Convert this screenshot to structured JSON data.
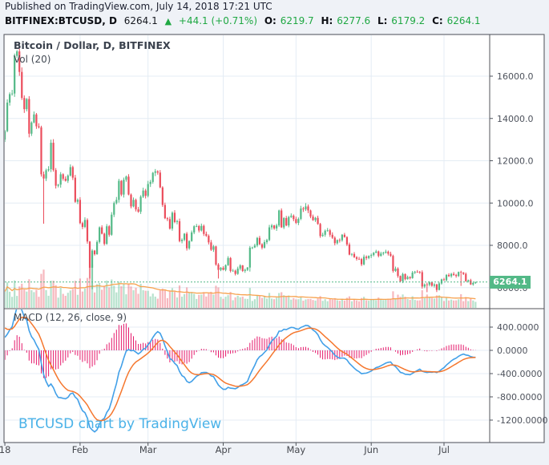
{
  "published_bar": {
    "text": "Published on TradingView.com, July 14, 2018 17:21 UTC"
  },
  "symbol_bar": {
    "symbol": "BITFINEX:BTCUSD, D",
    "last_price": "6264.1",
    "direction_icon": "▲",
    "change": "+44.1 (+0.71%)",
    "ohlc": [
      {
        "label": "O:",
        "value": "6219.7"
      },
      {
        "label": "H:",
        "value": "6277.6"
      },
      {
        "label": "L:",
        "value": "6179.2"
      },
      {
        "label": "C:",
        "value": "6264.1"
      }
    ]
  },
  "legend": {
    "main": "Bitcoin / Dollar, D, BITFINEX",
    "volume": "Vol (20)",
    "macd": "MACD (12, 26, close, 9)"
  },
  "watermark": "BTCUSD chart by TradingView",
  "colors": {
    "up": "#53b987",
    "down": "#eb4d5c",
    "vol_up": "rgba(83,185,135,0.42)",
    "vol_down": "rgba(235,77,92,0.40)",
    "vol_ma": "#f7a24e",
    "macd_line": "#42a0e8",
    "macd_signal": "#f5772e",
    "macd_hist": "#e5196b",
    "text_green": "#1fa843",
    "price_line": "#53b987",
    "price_tag_bg": "#53b987",
    "watermark": "#4ab2e8",
    "grid": "#e4ecf4",
    "frame": "#50535a",
    "axis_text": "#4d525c",
    "plot_bg": "#ffffff",
    "page_bg": "#eff2f7"
  },
  "chart_data": {
    "type": "candlestick",
    "title": "Bitcoin / Dollar, D, BITFINEX",
    "panes": [
      "price+volume",
      "macd"
    ],
    "x_axis": {
      "labels": [
        {
          "label": "18",
          "day": 0
        },
        {
          "label": "Feb",
          "day": 31
        },
        {
          "label": "Mar",
          "day": 59
        },
        {
          "label": "Apr",
          "day": 90
        },
        {
          "label": "May",
          "day": 120
        },
        {
          "label": "Jun",
          "day": 151
        },
        {
          "label": "Jul",
          "day": 181
        }
      ],
      "month_day_cumulative": [
        31,
        59,
        90,
        120,
        151,
        181,
        195
      ]
    },
    "price_axis": {
      "ticks": [
        {
          "v": 16000,
          "label": "16000.0"
        },
        {
          "v": 14000,
          "label": "14000.0"
        },
        {
          "v": 12000,
          "label": "12000.0"
        },
        {
          "v": 10000,
          "label": "10000.0"
        },
        {
          "v": 8000,
          "label": "8000.0"
        },
        {
          "v": 6000,
          "label": "6000.0"
        }
      ],
      "last_price": 6264.1,
      "last_price_label": "6264.1"
    },
    "macd_axis": {
      "ticks": [
        {
          "v": 400,
          "label": "400.0000"
        },
        {
          "v": 0,
          "label": "0.0000"
        },
        {
          "v": -400,
          "label": "-400.0000"
        },
        {
          "v": -800,
          "label": "-800.0000"
        },
        {
          "v": -1200,
          "label": "-1200.0000"
        }
      ]
    },
    "open_first": 13000,
    "closes": [
      13400,
      14750,
      15150,
      15180,
      16960,
      17170,
      16200,
      14970,
      14440,
      14920,
      13280,
      13810,
      14190,
      13630,
      13580,
      11360,
      11160,
      11550,
      11600,
      12850,
      11560,
      10820,
      10870,
      11360,
      11150,
      11050,
      11300,
      11700,
      11200,
      10060,
      10150,
      9050,
      8870,
      9200,
      8180,
      6940,
      7750,
      7580,
      8160,
      8850,
      8550,
      8070,
      8900,
      8500,
      9450,
      10000,
      10150,
      11050,
      10400,
      11100,
      11250,
      10400,
      9840,
      10150,
      9700,
      9590,
      10300,
      10590,
      10340,
      10900,
      11000,
      11430,
      11500,
      11440,
      10740,
      9910,
      9280,
      9240,
      8790,
      9540,
      9100,
      9140,
      8200,
      8260,
      8550,
      7860,
      8200,
      8610,
      8900,
      8910,
      8700,
      8920,
      8540,
      8450,
      8140,
      7790,
      7950,
      7090,
      6840,
      6940,
      6840,
      7060,
      7400,
      6790,
      6800,
      6650,
      6900,
      7050,
      6790,
      6840,
      6950,
      7890,
      7900,
      7990,
      8350,
      8050,
      7890,
      8150,
      8250,
      8850,
      8940,
      8800,
      8940,
      9650,
      8850,
      9290,
      8940,
      9340,
      9400,
      9240,
      9060,
      9250,
      9740,
      9700,
      9840,
      9650,
      9360,
      9190,
      9300,
      9010,
      8440,
      8500,
      8690,
      8710,
      8500,
      8360,
      8100,
      8250,
      8240,
      8500,
      8390,
      8040,
      7560,
      7590,
      7440,
      7360,
      7350,
      7100,
      7460,
      7400,
      7500,
      7540,
      7650,
      7710,
      7500,
      7610,
      7650,
      7700,
      7600,
      7500,
      6790,
      6900,
      6550,
      6300,
      6640,
      6400,
      6500,
      6450,
      6710,
      6750,
      6740,
      6730,
      6050,
      6150,
      6140,
      6250,
      6090,
      6150,
      5890,
      6200,
      6390,
      6350,
      6600,
      6540,
      6650,
      6600,
      6550,
      6740,
      6710,
      6650,
      6300,
      6350,
      6150,
      6220,
      6264.1
    ],
    "wick_overrides": [
      [
        5,
        "h",
        17234
      ],
      [
        16,
        "l",
        9022
      ],
      [
        19,
        "h",
        12998
      ],
      [
        35,
        "l",
        6430
      ],
      [
        36,
        "l",
        5920
      ],
      [
        88,
        "l",
        6430
      ],
      [
        101,
        "l",
        6760
      ],
      [
        124,
        "h",
        9995
      ],
      [
        172,
        "l",
        5950
      ],
      [
        174,
        "l",
        5785
      ],
      [
        178,
        "l",
        5790
      ],
      [
        188,
        "l",
        6080
      ]
    ],
    "last_candle": {
      "open": 6219.7,
      "high": 6277.6,
      "low": 6179.2,
      "close": 6264.1
    },
    "volume": {
      "ma_period": 20,
      "month_scale": [
        1.0,
        1.05,
        0.8,
        0.62,
        0.5,
        0.6,
        0.5
      ]
    },
    "macd": {
      "fast": 12,
      "slow": 26,
      "source": "close",
      "signal": 9,
      "seed_closes": [
        12200,
        12600,
        13000,
        13400,
        13800,
        14200,
        14500,
        14800,
        15000,
        15100,
        15000,
        14800,
        14500,
        14200,
        13900,
        13700,
        13600,
        13600,
        13700,
        13900
      ]
    }
  }
}
